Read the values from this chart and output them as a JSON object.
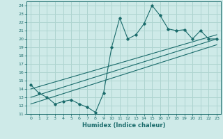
{
  "xlabel": "Humidex (Indice chaleur)",
  "ylabel": "",
  "bg_color": "#ceeae8",
  "grid_color": "#aed4d0",
  "line_color": "#1a6b6b",
  "xlim": [
    -0.5,
    23.5
  ],
  "ylim": [
    11,
    24.5
  ],
  "xticks": [
    0,
    1,
    2,
    3,
    4,
    5,
    6,
    7,
    8,
    9,
    10,
    11,
    12,
    13,
    14,
    15,
    16,
    17,
    18,
    19,
    20,
    21,
    22,
    23
  ],
  "yticks": [
    11,
    12,
    13,
    14,
    15,
    16,
    17,
    18,
    19,
    20,
    21,
    22,
    23,
    24
  ],
  "data_x": [
    0,
    1,
    2,
    3,
    4,
    5,
    6,
    7,
    8,
    9,
    10,
    11,
    12,
    13,
    14,
    15,
    16,
    17,
    18,
    19,
    20,
    21,
    22,
    23
  ],
  "data_y": [
    14.5,
    13.5,
    13.0,
    12.2,
    12.5,
    12.7,
    12.2,
    11.8,
    11.2,
    13.5,
    19.0,
    22.5,
    20.0,
    20.5,
    21.8,
    24.0,
    22.8,
    21.2,
    21.0,
    21.1,
    20.0,
    21.0,
    20.0,
    20.0
  ],
  "line1_x": [
    0,
    23
  ],
  "line1_y": [
    14.0,
    20.5
  ],
  "line2_x": [
    0,
    23
  ],
  "line2_y": [
    13.0,
    20.0
  ],
  "line3_x": [
    0,
    23
  ],
  "line3_y": [
    12.2,
    19.3
  ]
}
